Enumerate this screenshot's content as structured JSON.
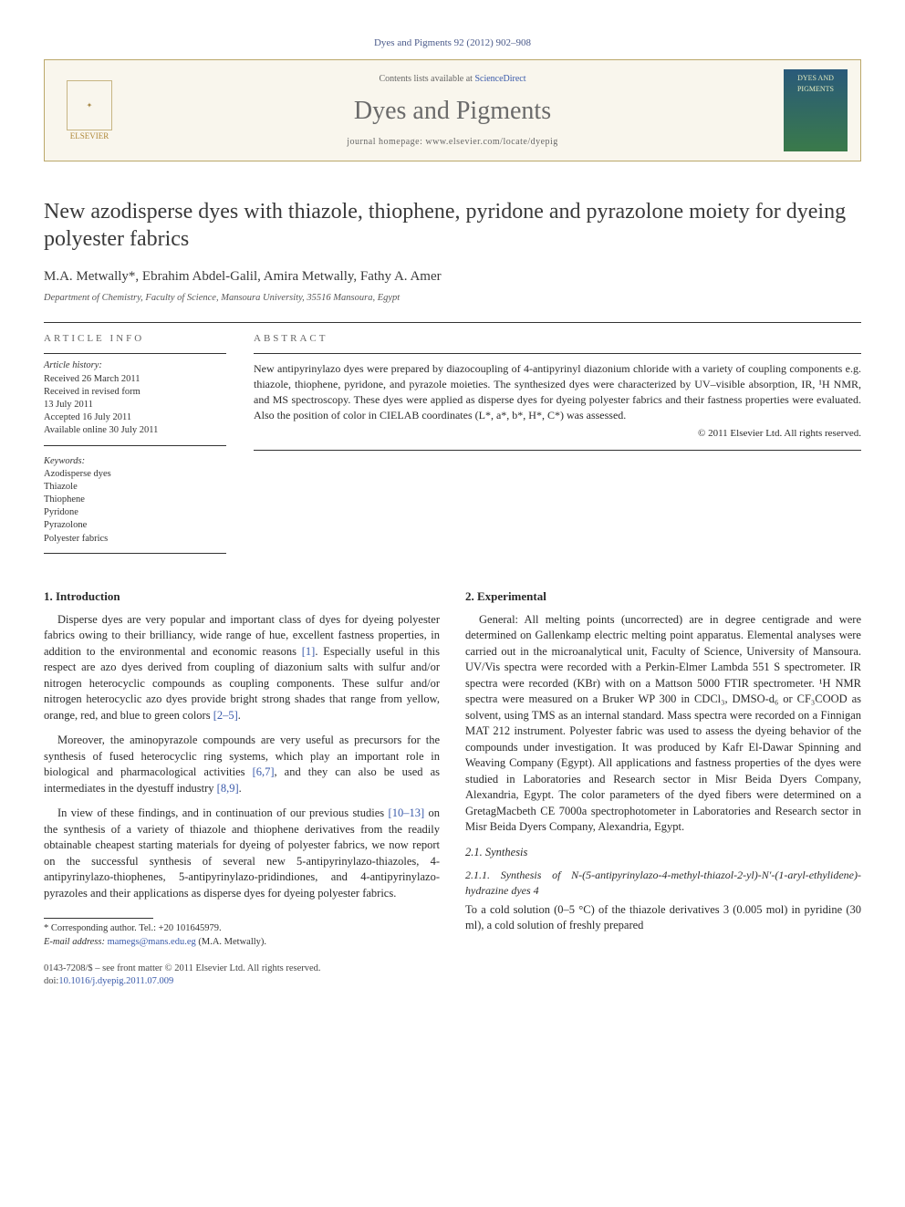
{
  "citation": "Dyes and Pigments 92 (2012) 902–908",
  "headerBar": {
    "contentsPrefix": "Contents lists available at ",
    "contentsLink": "ScienceDirect",
    "journal": "Dyes and Pigments",
    "homepagePrefix": "journal homepage: ",
    "homepage": "www.elsevier.com/locate/dyepig",
    "publisher": "ELSEVIER",
    "coverText": "DYES AND PIGMENTS"
  },
  "title": "New azodisperse dyes with thiazole, thiophene, pyridone and pyrazolone moiety for dyeing polyester fabrics",
  "authors": "M.A. Metwally*, Ebrahim Abdel-Galil, Amira Metwally, Fathy A. Amer",
  "affiliation": "Department of Chemistry, Faculty of Science, Mansoura University, 35516 Mansoura, Egypt",
  "articleInfo": {
    "head": "ARTICLE INFO",
    "historyLabel": "Article history:",
    "history": [
      "Received 26 March 2011",
      "Received in revised form",
      "13 July 2011",
      "Accepted 16 July 2011",
      "Available online 30 July 2011"
    ],
    "keywordsLabel": "Keywords:",
    "keywords": [
      "Azodisperse dyes",
      "Thiazole",
      "Thiophene",
      "Pyridone",
      "Pyrazolone",
      "Polyester fabrics"
    ]
  },
  "abstract": {
    "head": "ABSTRACT",
    "body": "New antipyrinylazo dyes were prepared by diazocoupling of 4-antipyrinyl diazonium chloride with a variety of coupling components e.g. thiazole, thiophene, pyridone, and pyrazole moieties. The synthesized dyes were characterized by UV–visible absorption, IR, ¹H NMR, and MS spectroscopy. These dyes were applied as disperse dyes for dyeing polyester fabrics and their fastness properties were evaluated. Also the position of color in CIELAB coordinates (L*, a*, b*, H*, C*) was assessed.",
    "copyright": "© 2011 Elsevier Ltd. All rights reserved."
  },
  "sections": {
    "intro": {
      "head": "1. Introduction",
      "p1a": "Disperse dyes are very popular and important class of dyes for dyeing polyester fabrics owing to their brilliancy, wide range of hue, excellent fastness properties, in addition to the environmental and economic reasons ",
      "p1ref1": "[1]",
      "p1b": ". Especially useful in this respect are azo dyes derived from coupling of diazonium salts with sulfur and/or nitrogen heterocyclic compounds as coupling components. These sulfur and/or nitrogen heterocyclic azo dyes provide bright strong shades that range from yellow, orange, red, and blue to green colors ",
      "p1ref2": "[2–5]",
      "p1c": ".",
      "p2a": "Moreover, the aminopyrazole compounds are very useful as precursors for the synthesis of fused heterocyclic ring systems, which play an important role in biological and pharmacological activities ",
      "p2ref1": "[6,7]",
      "p2b": ", and they can also be used as intermediates in the dyestuff industry ",
      "p2ref2": "[8,9]",
      "p2c": ".",
      "p3a": "In view of these findings, and in continuation of our previous studies ",
      "p3ref1": "[10–13]",
      "p3b": " on the synthesis of a variety of thiazole and thiophene derivatives from the readily obtainable cheapest starting materials for dyeing of polyester fabrics, we now report on the successful synthesis of several new 5-antipyrinylazo-thiazoles, 4-antipyrinylazo-thiophenes, 5-antipyrinylazo-pridindiones, and 4-antipyrinylazo-pyrazoles and their applications as disperse dyes for dyeing polyester fabrics."
    },
    "exp": {
      "head": "2. Experimental",
      "p1": "General: All melting points (uncorrected) are in degree centigrade and were determined on Gallenkamp electric melting point apparatus. Elemental analyses were carried out in the microanalytical unit, Faculty of Science, University of Mansoura. UV/Vis spectra were recorded with a Perkin-Elmer Lambda 551 S spectrometer. IR spectra were recorded (KBr) with on a Mattson 5000 FTIR spectrometer. ¹H NMR spectra were measured on a Bruker WP 300 in CDCl₃, DMSO-d₆ or CF₃COOD as solvent, using TMS as an internal standard. Mass spectra were recorded on a Finnigan MAT 212 instrument. Polyester fabric was used to assess the dyeing behavior of the compounds under investigation. It was produced by Kafr El-Dawar Spinning and Weaving Company (Egypt). All applications and fastness properties of the dyes were studied in Laboratories and Research sector in Misr Beida Dyers Company, Alexandria, Egypt. The color parameters of the dyed fibers were determined on a GretagMacbeth CE 7000a spectrophotometer in Laboratories and Research sector in Misr Beida Dyers Company, Alexandria, Egypt.",
      "synHead": "2.1. Synthesis",
      "syn1Head": "2.1.1. Synthesis of N-(5-antipyrinylazo-4-methyl-thiazol-2-yl)-N′-(1-aryl-ethylidene)-hydrazine dyes 4",
      "syn1p": "To a cold solution (0–5 °C) of the thiazole derivatives 3 (0.005 mol) in pyridine (30 ml), a cold solution of freshly prepared"
    }
  },
  "corr": {
    "lineLabel": "* Corresponding author. Tel.: ",
    "tel": "+20 101645979.",
    "emailLabel": "E-mail address: ",
    "email": "mamegs@mans.edu.eg",
    "emailSuffix": " (M.A. Metwally)."
  },
  "bottom": {
    "line1": "0143-7208/$ – see front matter © 2011 Elsevier Ltd. All rights reserved.",
    "doiPrefix": "doi:",
    "doi": "10.1016/j.dyepig.2011.07.009"
  },
  "colors": {
    "link": "#3a5aaa",
    "headerBorder": "#bba86a",
    "headerBg": "#f9f6ed"
  }
}
